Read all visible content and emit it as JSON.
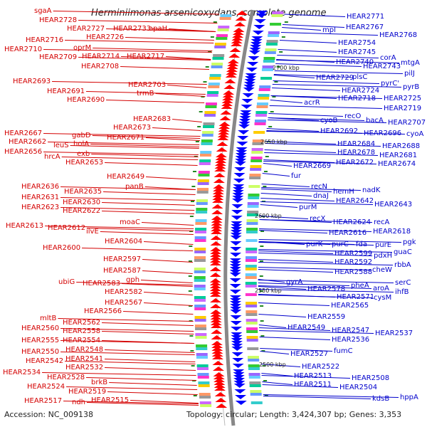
{
  "title": "Herminiimonas arsenicoxydans, complete genome",
  "footer": {
    "accession": "Accession: NC_009138",
    "topology": "Topology: circular; Length: 3,424,307 bp; Genes: 3,353"
  },
  "colors": {
    "left_labels": "#d40000",
    "right_labels": "#0000cc",
    "backbone": "#888888",
    "gene_band_left": "#ff0000",
    "gene_band_right": "#0000ff",
    "tick": "#228822"
  },
  "kbp_ticks": [
    "2700 kbp",
    "2650 kbp",
    "2600 kbp",
    "2550 kbp",
    "2500 kbp"
  ],
  "left_labels": [
    "sgaA",
    "HEAR2728",
    "HEAR2727",
    "HEAR2733",
    "apaH",
    "HEAR2726",
    "HEAR2716",
    "oprM",
    "HEAR2710",
    "HEAR2709",
    "HEAR2714",
    "HEAR2717",
    "HEAR2708",
    "HEAR2693",
    "HEAR2703",
    "HEAR2691",
    "trmB",
    "HEAR2690",
    "HEAR2683",
    "HEAR2673",
    "HEAR2667",
    "gabD",
    "HEAR2671",
    "HEAR2662",
    "leuS",
    "holA",
    "HEAR2656",
    "exb",
    "hrcA",
    "HEAR2653",
    "HEAR2649",
    "HEAR2636",
    "panB",
    "HEAR2635",
    "HEAR2631",
    "HEAR2630",
    "HEAR2623",
    "HEAR2622",
    "moaC",
    "HEAR2613",
    "HEAR2612",
    "ilvE",
    "HEAR2604",
    "HEAR2600",
    "HEAR2597",
    "HEAR2587",
    "gph",
    "ubiG",
    "HEAR2583",
    "HEAR2582",
    "HEAR2567",
    "HEAR2566",
    "mltB",
    "HEAR2562",
    "HEAR2560",
    "HEAR2558",
    "HEAR2555",
    "HEAR2554",
    "HEAR2550",
    "HEAR2548",
    "HEAR2542",
    "HEAR2541",
    "HEAR2532",
    "HEAR2534",
    "HEAR2528",
    "brkB",
    "HEAR2524",
    "HEAR2519",
    "HEAR2517",
    "ndh",
    "HEAR2515"
  ],
  "right_labels": [
    "HEAR2771",
    "HEAR2767",
    "mpl",
    "HEAR2768",
    "HEAR2754",
    "HEAR2745",
    "corA",
    "HEAR2740",
    "mtgA",
    "HEAR2743",
    "pilJ",
    "HEAR2729",
    "plsC",
    "pyrC'",
    "pyrB",
    "HEAR2724",
    "HEAR2725",
    "HEAR2718",
    "acrR",
    "HEAR2719",
    "recO",
    "cyoB",
    "bacA",
    "HEAR2707",
    "HEAR2692",
    "HEAR2696",
    "cyoA",
    "HEAR2684",
    "HEAR2688",
    "HEAR2678",
    "HEAR2681",
    "HEAR2669",
    "HEAR2672",
    "HEAR2674",
    "fur",
    "recN",
    "hemH",
    "nadK",
    "dnaJ",
    "HEAR2642",
    "HEAR2643",
    "purM",
    "recX",
    "HEAR2624",
    "recA",
    "HEAR2616",
    "HEAR2618",
    "purK",
    "purC",
    "fda",
    "purE",
    "pgk",
    "HEAR2599",
    "pdxH",
    "guaC",
    "HEAR2592",
    "rbbA",
    "cheW",
    "HEAR2588",
    "gyrA",
    "pheA",
    "serC",
    "HEAR2578",
    "aroA",
    "ihfB",
    "HEAR2571",
    "cysM",
    "HEAR2565",
    "HEAR2559",
    "HEAR2549",
    "HEAR2547",
    "HEAR2537",
    "HEAR2536",
    "HEAR2527",
    "fumC",
    "HEAR2522",
    "HEAR2513",
    "HEAR2508",
    "HEAR2511",
    "HEAR2504",
    "kdsB",
    "hppA"
  ]
}
